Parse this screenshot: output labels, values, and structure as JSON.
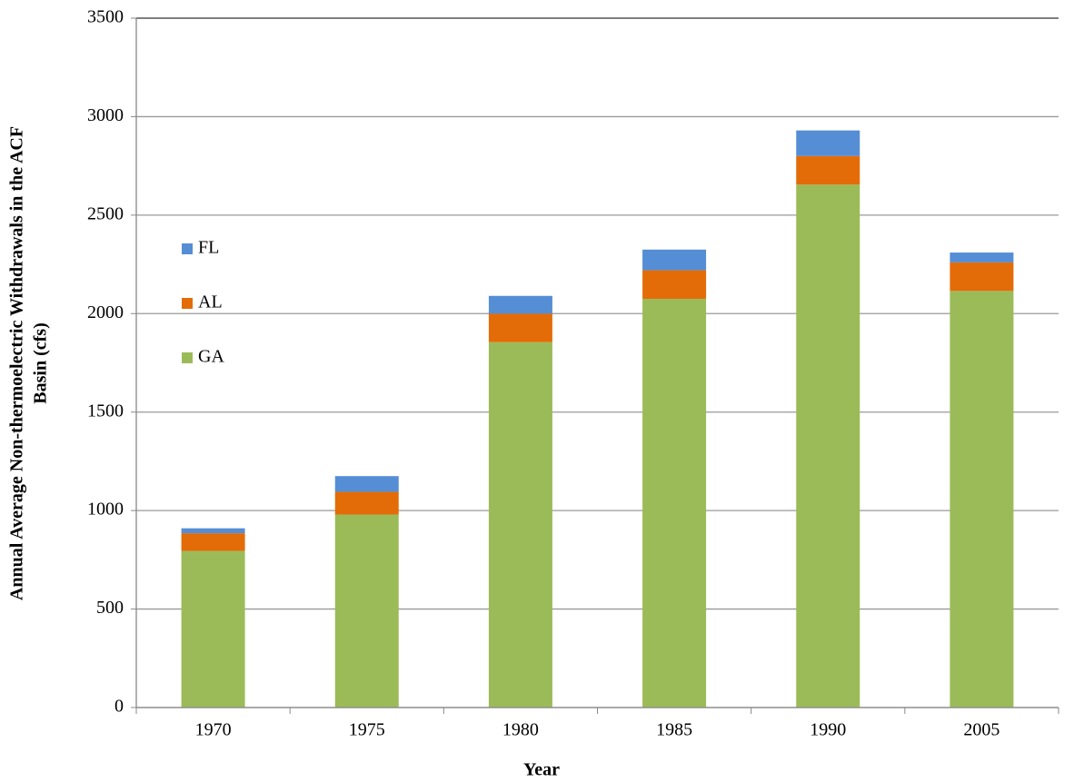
{
  "chart_data": {
    "type": "stacked_bar",
    "x_label": "Year",
    "y_label": [
      "Annual Average Non-thermoelectric Withdrawals in the ACF",
      "Basin (cfs)"
    ],
    "categories": [
      "1970",
      "1975",
      "1980",
      "1985",
      "1990",
      "2005"
    ],
    "series": [
      {
        "name": "GA",
        "color": "#9bbb59",
        "values": [
          795,
          980,
          1855,
          2075,
          2655,
          2115
        ]
      },
      {
        "name": "AL",
        "color": "#e36c09",
        "values": [
          90,
          115,
          145,
          145,
          145,
          145
        ]
      },
      {
        "name": "FL",
        "color": "#558ed5",
        "values": [
          25,
          80,
          90,
          105,
          130,
          50
        ]
      }
    ],
    "ylim": [
      0,
      3500
    ],
    "yticks": [
      0,
      500,
      1000,
      1500,
      2000,
      2500,
      3000,
      3500
    ],
    "grid": true,
    "legend": "left"
  }
}
